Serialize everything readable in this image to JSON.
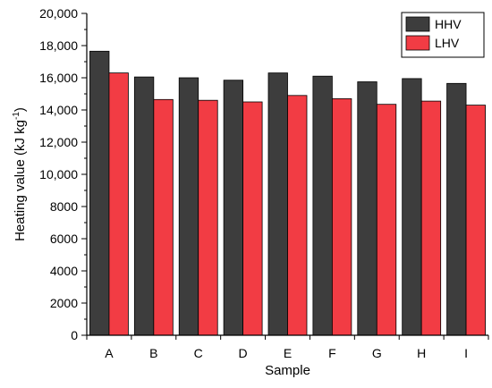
{
  "chart_data": {
    "type": "bar",
    "categories": [
      "A",
      "B",
      "C",
      "D",
      "E",
      "F",
      "G",
      "H",
      "I"
    ],
    "series": [
      {
        "name": "HHV",
        "color": "#3d3d3d",
        "values": [
          17650,
          16050,
          16000,
          15850,
          16300,
          16100,
          15750,
          15950,
          15650
        ]
      },
      {
        "name": "LHV",
        "color": "#f23c44",
        "values": [
          16300,
          14650,
          14600,
          14500,
          14900,
          14700,
          14350,
          14550,
          14300
        ]
      }
    ],
    "xlabel": "Sample",
    "ylabel": {
      "main": "Heating value (kJ kg",
      "sup": "-1",
      "close": ")"
    },
    "ylim": [
      0,
      20000
    ],
    "yticks": [
      {
        "value": 0,
        "label": "0"
      },
      {
        "value": 2000,
        "label": "2000"
      },
      {
        "value": 4000,
        "label": "4000"
      },
      {
        "value": 6000,
        "label": "6000"
      },
      {
        "value": 8000,
        "label": "8000"
      },
      {
        "value": 10000,
        "label": "10,000"
      },
      {
        "value": 12000,
        "label": "12,000"
      },
      {
        "value": 14000,
        "label": "14,000"
      },
      {
        "value": 16000,
        "label": "16,000"
      },
      {
        "value": 18000,
        "label": "18,000"
      },
      {
        "value": 20000,
        "label": "20,000"
      }
    ],
    "grid": false,
    "legend_position": "top-right"
  }
}
